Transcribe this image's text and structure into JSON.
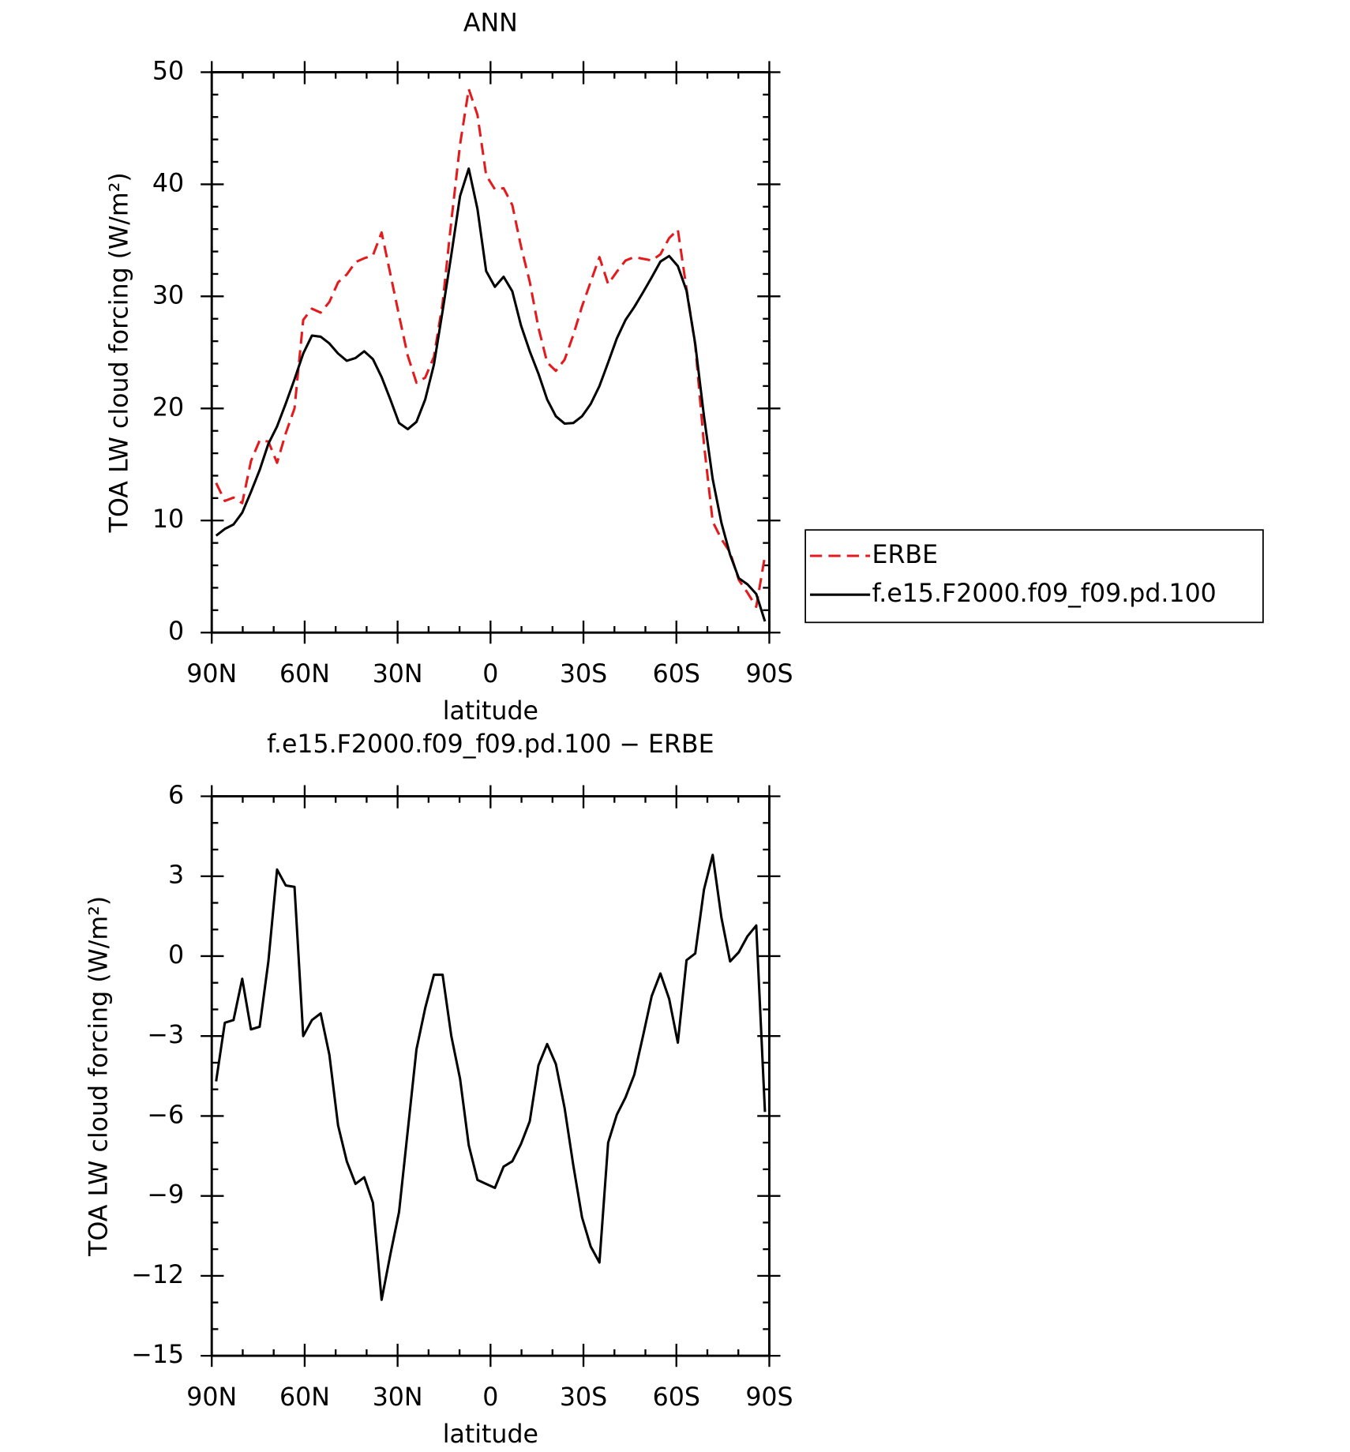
{
  "chart_data": [
    {
      "type": "line",
      "title": "ANN",
      "xlabel": "latitude",
      "ylabel": "TOA LW cloud forcing (W/m²)",
      "x": [
        88.59,
        85.78,
        82.97,
        80.16,
        77.34,
        74.53,
        71.72,
        68.91,
        66.09,
        63.28,
        60.47,
        57.66,
        54.84,
        52.03,
        49.22,
        46.41,
        43.59,
        40.78,
        37.97,
        35.16,
        32.34,
        29.53,
        26.72,
        23.91,
        21.09,
        18.28,
        15.47,
        12.66,
        9.84,
        7.03,
        4.22,
        1.41,
        -1.41,
        -4.22,
        -7.03,
        -9.84,
        -12.66,
        -15.47,
        -18.28,
        -21.09,
        -23.91,
        -26.72,
        -29.53,
        -32.34,
        -35.16,
        -37.97,
        -40.78,
        -43.59,
        -46.41,
        -49.22,
        -52.03,
        -54.84,
        -57.66,
        -60.47,
        -63.28,
        -66.09,
        -68.91,
        -71.72,
        -74.53,
        -77.34,
        -80.16,
        -82.97,
        -85.78,
        -88.59
      ],
      "series": [
        {
          "name": "ERBE",
          "color": "#e41a1c",
          "dashed": true,
          "values": [
            13.35,
            11.75,
            12.05,
            11.55,
            15.3,
            17.15,
            17.05,
            15.15,
            17.8,
            20.0,
            27.9,
            28.9,
            28.55,
            29.5,
            31.25,
            31.95,
            33.05,
            33.4,
            33.65,
            35.7,
            32.0,
            28.3,
            24.7,
            22.3,
            22.75,
            24.6,
            29.4,
            36.7,
            43.55,
            48.5,
            46.2,
            40.8,
            39.55,
            39.65,
            38.15,
            34.45,
            31.3,
            27.2,
            24.1,
            23.35,
            24.35,
            26.55,
            29.1,
            31.3,
            33.5,
            31.1,
            32.2,
            33.2,
            33.5,
            33.35,
            33.2,
            33.75,
            35.2,
            35.95,
            30.65,
            25.65,
            16.8,
            9.9,
            8.35,
            7.15,
            4.7,
            3.55,
            2.3,
            6.85
          ]
        },
        {
          "name": "f.e15.F2000.f09_f09.pd.100",
          "color": "#000000",
          "dashed": false,
          "values": [
            8.65,
            9.25,
            9.65,
            10.7,
            12.55,
            14.5,
            16.85,
            18.4,
            20.45,
            22.6,
            24.9,
            26.5,
            26.4,
            25.8,
            24.9,
            24.25,
            24.5,
            25.1,
            24.4,
            22.8,
            20.8,
            18.7,
            18.15,
            18.8,
            20.8,
            23.9,
            28.7,
            33.7,
            38.95,
            41.4,
            37.8,
            32.25,
            30.85,
            31.75,
            30.45,
            27.4,
            25.1,
            23.1,
            20.8,
            19.3,
            18.65,
            18.7,
            19.3,
            20.4,
            22.0,
            24.1,
            26.25,
            27.9,
            29.05,
            30.35,
            31.7,
            33.1,
            33.6,
            32.7,
            30.5,
            25.75,
            19.3,
            13.7,
            9.8,
            6.95,
            4.85,
            4.3,
            3.45,
            1.0
          ]
        }
      ],
      "xlim": [
        90,
        -90
      ],
      "xticks": [
        {
          "value": 90,
          "label": "90N"
        },
        {
          "value": 60,
          "label": "60N"
        },
        {
          "value": 30,
          "label": "30N"
        },
        0,
        {
          "value": -30,
          "label": "30S"
        },
        {
          "value": -60,
          "label": "60S"
        },
        {
          "value": -90,
          "label": "90S"
        }
      ],
      "ylim": [
        0,
        50
      ],
      "yticks": [
        0,
        10,
        20,
        30,
        40,
        50
      ],
      "legend": "outside right"
    },
    {
      "type": "line",
      "title": "f.e15.F2000.f09_f09.pd.100 − ERBE",
      "xlabel": "latitude",
      "ylabel": "TOA LW cloud forcing (W/m²)",
      "x": [
        88.59,
        85.78,
        82.97,
        80.16,
        77.34,
        74.53,
        71.72,
        68.91,
        66.09,
        63.28,
        60.47,
        57.66,
        54.84,
        52.03,
        49.22,
        46.41,
        43.59,
        40.78,
        37.97,
        35.16,
        32.34,
        29.53,
        26.72,
        23.91,
        21.09,
        18.28,
        15.47,
        12.66,
        9.84,
        7.03,
        4.22,
        1.41,
        -1.41,
        -4.22,
        -7.03,
        -9.84,
        -12.66,
        -15.47,
        -18.28,
        -21.09,
        -23.91,
        -26.72,
        -29.53,
        -32.34,
        -35.16,
        -37.97,
        -40.78,
        -43.59,
        -46.41,
        -49.22,
        -52.03,
        -54.84,
        -57.66,
        -60.47,
        -63.28,
        -66.09,
        -68.91,
        -71.72,
        -74.53,
        -77.34,
        -80.16,
        -82.97,
        -85.78,
        -88.59
      ],
      "series": [
        {
          "color": "#000000",
          "dashed": false,
          "values": [
            -4.7,
            -2.5,
            -2.4,
            -0.85,
            -2.75,
            -2.65,
            -0.2,
            3.25,
            2.65,
            2.6,
            -3.0,
            -2.4,
            -2.15,
            -3.7,
            -6.35,
            -7.7,
            -8.55,
            -8.3,
            -9.25,
            -12.9,
            -11.2,
            -9.6,
            -6.55,
            -3.5,
            -1.95,
            -0.7,
            -0.7,
            -3.0,
            -4.6,
            -7.1,
            -8.4,
            -8.55,
            -8.7,
            -7.9,
            -7.7,
            -7.05,
            -6.2,
            -4.1,
            -3.3,
            -4.05,
            -5.7,
            -7.85,
            -9.8,
            -10.9,
            -11.5,
            -7.0,
            -5.95,
            -5.3,
            -4.45,
            -3.0,
            -1.5,
            -0.65,
            -1.6,
            -3.25,
            -0.15,
            0.1,
            2.5,
            3.8,
            1.45,
            -0.2,
            0.15,
            0.75,
            1.15,
            -5.85
          ]
        }
      ],
      "xlim": [
        90,
        -90
      ],
      "xticks": [
        {
          "value": 90,
          "label": "90N"
        },
        {
          "value": 60,
          "label": "60N"
        },
        {
          "value": 30,
          "label": "30N"
        },
        0,
        {
          "value": -30,
          "label": "30S"
        },
        {
          "value": -60,
          "label": "60S"
        },
        {
          "value": -90,
          "label": "90S"
        }
      ],
      "ylim": [
        -15,
        6
      ],
      "yticks": [
        {
          "value": -15,
          "label": "−15"
        },
        {
          "value": -12,
          "label": "−12"
        },
        {
          "value": -9,
          "label": "−9"
        },
        {
          "value": -6,
          "label": "−6"
        },
        {
          "value": -3,
          "label": "−3"
        },
        0,
        3,
        6
      ]
    }
  ]
}
